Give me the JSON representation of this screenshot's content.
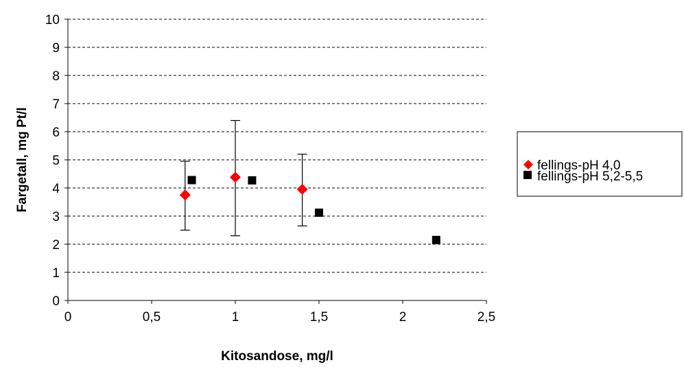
{
  "chart_data": {
    "type": "scatter",
    "title": "",
    "xlabel": "Kitosandose, mg/l",
    "ylabel": "Fargetall, mg Pt/l",
    "xlim": [
      0,
      2.5
    ],
    "ylim": [
      0,
      10
    ],
    "x_ticks": [
      "0",
      "0,5",
      "1",
      "1,5",
      "2",
      "2,5"
    ],
    "y_ticks": [
      "0",
      "1",
      "2",
      "3",
      "4",
      "5",
      "6",
      "7",
      "8",
      "9",
      "10"
    ],
    "x_tick_values": [
      0,
      0.5,
      1,
      1.5,
      2,
      2.5
    ],
    "y_tick_values": [
      0,
      1,
      2,
      3,
      4,
      5,
      6,
      7,
      8,
      9,
      10
    ],
    "grid": "horizontal-dashed",
    "legend_position": "right",
    "series": [
      {
        "name": "fellings-pH 4,0",
        "marker": "diamond",
        "color": "#ff0000",
        "points": [
          {
            "x": 0.7,
            "y": 3.75,
            "err_low": 2.5,
            "err_high": 4.95
          },
          {
            "x": 1.0,
            "y": 4.38,
            "err_low": 2.3,
            "err_high": 6.4
          },
          {
            "x": 1.4,
            "y": 3.95,
            "err_low": 2.65,
            "err_high": 5.2
          }
        ]
      },
      {
        "name": "fellings-pH 5,2-5,5",
        "marker": "square",
        "color": "#000000",
        "points": [
          {
            "x": 0.74,
            "y": 4.28
          },
          {
            "x": 1.1,
            "y": 4.27
          },
          {
            "x": 1.5,
            "y": 3.12
          },
          {
            "x": 2.2,
            "y": 2.15
          }
        ]
      }
    ]
  }
}
